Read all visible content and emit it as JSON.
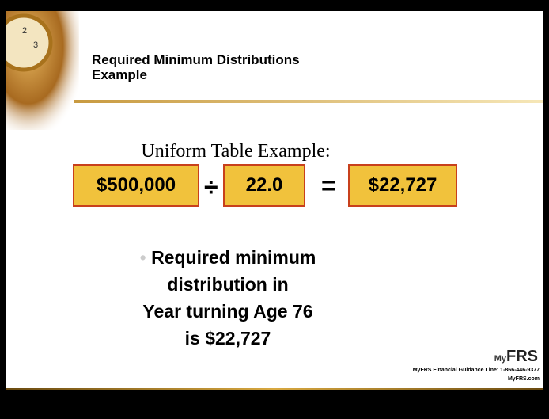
{
  "slide": {
    "title_lines": [
      "Required Minimum Distributions",
      "Example"
    ],
    "subtitle": "Uniform Table Example:",
    "equation": {
      "dividend": "$500,000",
      "divide_sign": "÷",
      "divisor": "22.0",
      "equals_sign": "=",
      "result": "$22,727"
    },
    "bullet": {
      "marker": "•",
      "lines": [
        "Required minimum",
        "distribution in",
        "Year turning Age 76",
        "is $22,727"
      ]
    },
    "logo": {
      "prefix": "My",
      "name": "FRS"
    },
    "footer": {
      "phone": "MyFRS Financial Guidance Line: 1-866-446-9377",
      "site": "MyFRS.com"
    }
  }
}
